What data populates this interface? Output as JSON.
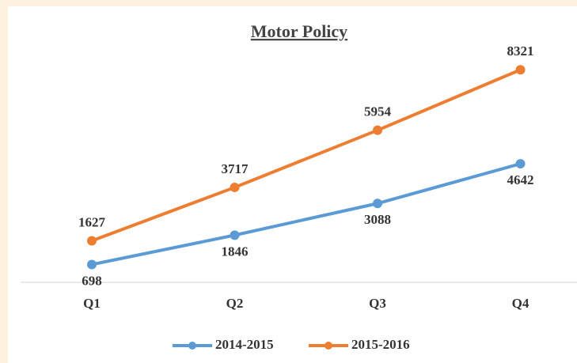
{
  "chart_data": {
    "type": "line",
    "title": "Motor Policy",
    "categories": [
      "Q1",
      "Q2",
      "Q3",
      "Q4"
    ],
    "series": [
      {
        "name": "2014-2015",
        "color": "#5b9bd5",
        "values": [
          698,
          1846,
          3088,
          4642
        ]
      },
      {
        "name": "2015-2016",
        "color": "#ed7d31",
        "values": [
          1627,
          3717,
          5954,
          8321
        ]
      }
    ],
    "ylim": [
      0,
      10000
    ],
    "legend": "bottom"
  }
}
